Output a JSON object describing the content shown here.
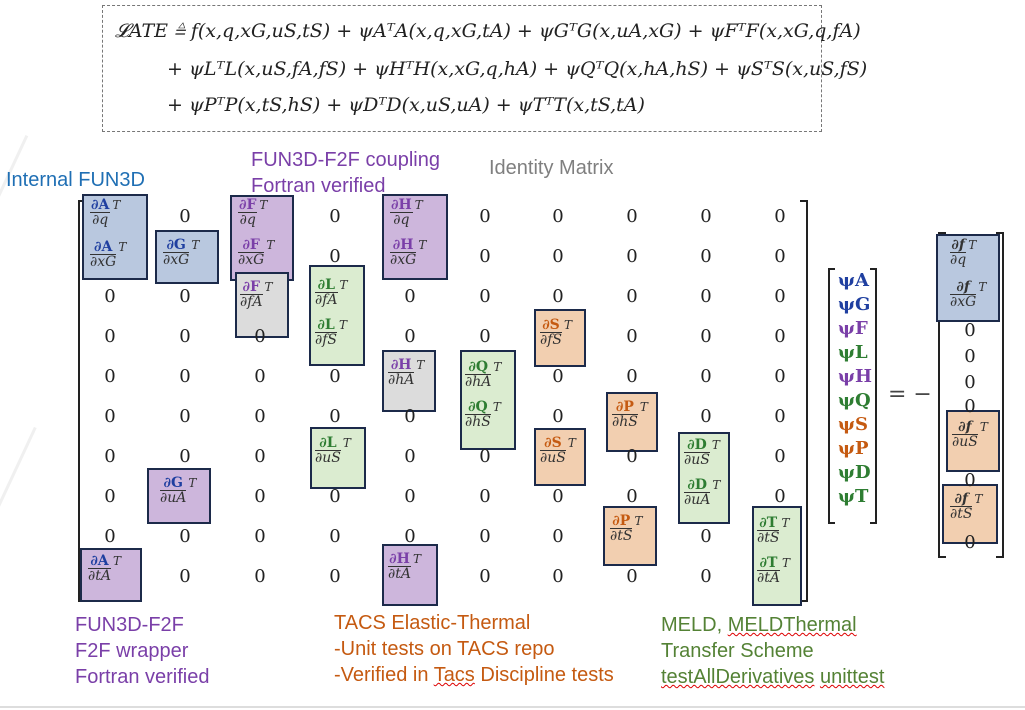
{
  "equation": {
    "line1": "𝓛ATE ≜ f(x,q,xG,uS,tS) + ψAᵀA(x,q,xG,tA) + ψGᵀG(x,uA,xG) + ψFᵀF(x,xG,q,fA)",
    "line2": "+ ψLᵀL(x,uS,fA,fS) + ψHᵀH(x,xG,q,hA) + ψQᵀQ(x,hA,hS) + ψSᵀS(x,uS,fS)",
    "line3": "+ ψPᵀP(x,tS,hS) + ψDᵀD(x,uS,uA) + ψTᵀT(x,tS,tA)"
  },
  "labels": {
    "internal_fun3d": "Internal FUN3D",
    "coupling_line1": "FUN3D-F2F coupling",
    "coupling_line2": "Fortran verified",
    "identity": "Identity Matrix",
    "f2f_line1": "FUN3D-F2F",
    "f2f_line2": "F2F wrapper",
    "f2f_line3": "Fortran verified",
    "tacs_line1": "TACS Elastic-Thermal",
    "tacs_line2": "-Unit tests on TACS repo",
    "tacs_line3_a": "-Verified in ",
    "tacs_line3_b": "Tacs",
    "tacs_line3_c": " Discipline tests",
    "meld_line1_a": "MELD, ",
    "meld_line1_b": "MELDThermal",
    "meld_line2": "Transfer Scheme",
    "meld_line3_a": "testAllDerivatives",
    "meld_line3_b": "unittest"
  },
  "matrix": {
    "zero": "0",
    "sup_t": "T",
    "blocks": {
      "dA_dq": {
        "num": "∂A",
        "den": "∂q"
      },
      "dA_dxG": {
        "num": "∂A",
        "den": "∂xG"
      },
      "dA_dtA": {
        "num": "∂A",
        "den": "∂tA"
      },
      "dG_dxG": {
        "num": "∂G",
        "den": "∂xG"
      },
      "dG_duA": {
        "num": "∂G",
        "den": "∂uA"
      },
      "dF_dq": {
        "num": "∂F",
        "den": "∂q"
      },
      "dF_dxG": {
        "num": "∂F",
        "den": "∂xG"
      },
      "dF_dfA": {
        "num": "∂F",
        "den": "∂fA"
      },
      "dL_dfA": {
        "num": "∂L",
        "den": "∂fA"
      },
      "dL_dfS": {
        "num": "∂L",
        "den": "∂fS"
      },
      "dL_duS": {
        "num": "∂L",
        "den": "∂uS"
      },
      "dH_dq": {
        "num": "∂H",
        "den": "∂q"
      },
      "dH_dxG": {
        "num": "∂H",
        "den": "∂xG"
      },
      "dH_dhA": {
        "num": "∂H",
        "den": "∂hA"
      },
      "dH_dtA": {
        "num": "∂H",
        "den": "∂tA"
      },
      "dQ_dhA": {
        "num": "∂Q",
        "den": "∂hA"
      },
      "dQ_dhS": {
        "num": "∂Q",
        "den": "∂hS"
      },
      "dS_dfS": {
        "num": "∂S",
        "den": "∂fS"
      },
      "dS_duS": {
        "num": "∂S",
        "den": "∂uS"
      },
      "dP_dhS": {
        "num": "∂P",
        "den": "∂hS"
      },
      "dP_dtS": {
        "num": "∂P",
        "den": "∂tS"
      },
      "dD_duS": {
        "num": "∂D",
        "den": "∂uS"
      },
      "dD_duA": {
        "num": "∂D",
        "den": "∂uA"
      },
      "dT_dtS": {
        "num": "∂T",
        "den": "∂tS"
      },
      "dT_dtA": {
        "num": "∂T",
        "den": "∂tA"
      }
    }
  },
  "psi_vector": [
    "ψA",
    "ψG",
    "ψF",
    "ψL",
    "ψH",
    "ψQ",
    "ψS",
    "ψP",
    "ψD",
    "ψT"
  ],
  "equals": "= −",
  "rhs": {
    "df_dq": {
      "num": "∂f",
      "den": "∂q"
    },
    "df_dxG": {
      "num": "∂f",
      "den": "∂xG"
    },
    "df_duS": {
      "num": "∂f",
      "den": "∂uS"
    },
    "df_dtS": {
      "num": "∂f",
      "den": "∂tS"
    }
  },
  "colors": {
    "blue": "#b9c8df",
    "purple": "#cdb6dc",
    "gray": "#dcdcdc",
    "green": "#dbecd0",
    "orange": "#f2cfb0",
    "label_blue": "#1f6fb4",
    "label_purple": "#7a3fa8",
    "label_gray": "#7f7f7f",
    "label_orange": "#c55a11",
    "label_green": "#548235"
  }
}
